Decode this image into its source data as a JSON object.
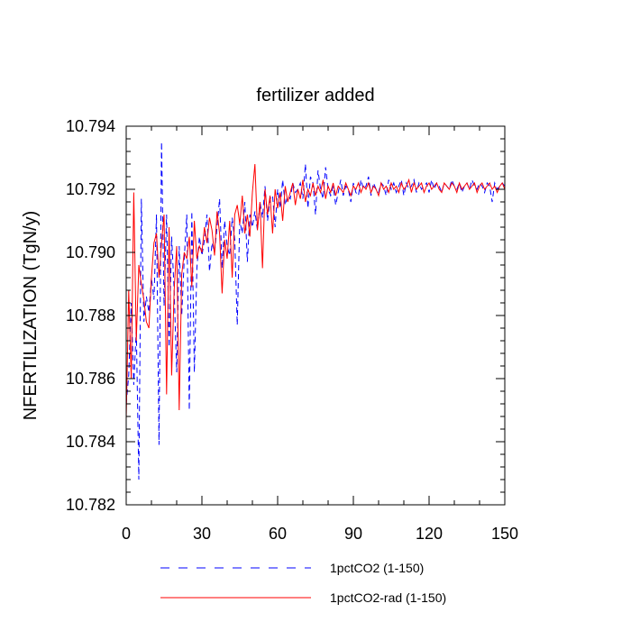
{
  "chart_data": {
    "type": "line",
    "title": "fertilizer added",
    "xlabel": "",
    "ylabel": "NFERTILIZATION  (TgN/y)",
    "xlim": [
      0,
      150
    ],
    "ylim": [
      10.782,
      10.794
    ],
    "x_ticks": [
      0,
      30,
      60,
      90,
      120,
      150
    ],
    "x_tick_labels": [
      "0",
      "30",
      "60",
      "90",
      "120",
      "150"
    ],
    "y_ticks": [
      10.782,
      10.784,
      10.786,
      10.788,
      10.79,
      10.792,
      10.794
    ],
    "y_tick_labels": [
      "10.782",
      "10.784",
      "10.786",
      "10.788",
      "10.790",
      "10.792",
      "10.794"
    ],
    "grid": false,
    "legend_position": "bottom",
    "series": [
      {
        "name": "1pctCO2 (1-150)",
        "color": "#0000ff",
        "dash": "dashed",
        "x": [
          0,
          1,
          2,
          3,
          4,
          5,
          6,
          7,
          8,
          9,
          10,
          11,
          12,
          13,
          14,
          15,
          16,
          17,
          18,
          19,
          20,
          21,
          22,
          23,
          24,
          25,
          26,
          27,
          28,
          29,
          30,
          31,
          32,
          33,
          34,
          35,
          36,
          37,
          38,
          39,
          40,
          41,
          42,
          43,
          44,
          45,
          46,
          47,
          48,
          49,
          50,
          51,
          52,
          53,
          54,
          55,
          56,
          57,
          58,
          59,
          60,
          61,
          62,
          63,
          64,
          65,
          66,
          67,
          68,
          69,
          70,
          71,
          72,
          73,
          74,
          75,
          76,
          77,
          78,
          79,
          80,
          81,
          82,
          83,
          84,
          85,
          86,
          87,
          88,
          89,
          90,
          91,
          92,
          93,
          94,
          95,
          96,
          97,
          98,
          99,
          100,
          101,
          102,
          103,
          104,
          105,
          106,
          107,
          108,
          109,
          110,
          111,
          112,
          113,
          114,
          115,
          116,
          117,
          118,
          119,
          120,
          121,
          122,
          123,
          124,
          125,
          126,
          127,
          128,
          129,
          130,
          131,
          132,
          133,
          134,
          135,
          136,
          137,
          138,
          139,
          140,
          141,
          142,
          143,
          144,
          145,
          146,
          147,
          148,
          149,
          150
        ],
        "y": [
          10.7852,
          10.7861,
          10.7884,
          10.7858,
          10.7876,
          10.7828,
          10.7917,
          10.7878,
          10.7886,
          10.7881,
          10.7892,
          10.7885,
          10.7912,
          10.7839,
          10.7935,
          10.7883,
          10.7912,
          10.787,
          10.7905,
          10.7888,
          10.7862,
          10.7902,
          10.788,
          10.7898,
          10.7912,
          10.785,
          10.7913,
          10.7862,
          10.7895,
          10.7905,
          10.7899,
          10.7904,
          10.7912,
          10.7894,
          10.7903,
          10.79,
          10.7908,
          10.7917,
          10.7895,
          10.791,
          10.7902,
          10.7899,
          10.7911,
          10.7904,
          10.7877,
          10.791,
          10.7906,
          10.7916,
          10.7897,
          10.7912,
          10.7908,
          10.7913,
          10.7907,
          10.7916,
          10.7911,
          10.7921,
          10.791,
          10.7917,
          10.7918,
          10.7908,
          10.792,
          10.7914,
          10.7923,
          10.7915,
          10.7918,
          10.7917,
          10.7922,
          10.7919,
          10.792,
          10.7922,
          10.7917,
          10.7928,
          10.7914,
          10.7924,
          10.7922,
          10.7912,
          10.7926,
          10.792,
          10.7917,
          10.7927,
          10.792,
          10.7918,
          10.7921,
          10.7915,
          10.7919,
          10.7923,
          10.7918,
          10.7921,
          10.792,
          10.7916,
          10.7922,
          10.7919,
          10.7918,
          10.7923,
          10.792,
          10.7921,
          10.7924,
          10.7918,
          10.7922,
          10.792,
          10.7919,
          10.7922,
          10.7921,
          10.7918,
          10.7923,
          10.792,
          10.7922,
          10.7919,
          10.7921,
          10.7923,
          10.7918,
          10.7922,
          10.792,
          10.7921,
          10.7923,
          10.7919,
          10.7922,
          10.792,
          10.7921,
          10.7922,
          10.7919,
          10.7923,
          10.792,
          10.7922,
          10.7921,
          10.7919,
          10.7922,
          10.7921,
          10.792,
          10.7923,
          10.7921,
          10.792,
          10.7922,
          10.7919,
          10.7921,
          10.7922,
          10.792,
          10.7923,
          10.7921,
          10.792,
          10.7922,
          10.7921,
          10.7919,
          10.7922,
          10.7921,
          10.7916,
          10.7922,
          10.792,
          10.7921,
          10.7922,
          10.7921
        ]
      },
      {
        "name": "1pctCO2-rad (1-150)",
        "color": "#ff0000",
        "dash": "solid",
        "x": [
          0,
          1,
          2,
          3,
          4,
          5,
          6,
          7,
          8,
          9,
          10,
          11,
          12,
          13,
          14,
          15,
          16,
          17,
          18,
          19,
          20,
          21,
          22,
          23,
          24,
          25,
          26,
          27,
          28,
          29,
          30,
          31,
          32,
          33,
          34,
          35,
          36,
          37,
          38,
          39,
          40,
          41,
          42,
          43,
          44,
          45,
          46,
          47,
          48,
          49,
          50,
          51,
          52,
          53,
          54,
          55,
          56,
          57,
          58,
          59,
          60,
          61,
          62,
          63,
          64,
          65,
          66,
          67,
          68,
          69,
          70,
          71,
          72,
          73,
          74,
          75,
          76,
          77,
          78,
          79,
          80,
          81,
          82,
          83,
          84,
          85,
          86,
          87,
          88,
          89,
          90,
          91,
          92,
          93,
          94,
          95,
          96,
          97,
          98,
          99,
          100,
          101,
          102,
          103,
          104,
          105,
          106,
          107,
          108,
          109,
          110,
          111,
          112,
          113,
          114,
          115,
          116,
          117,
          118,
          119,
          120,
          121,
          122,
          123,
          124,
          125,
          126,
          127,
          128,
          129,
          130,
          131,
          132,
          133,
          134,
          135,
          136,
          137,
          138,
          139,
          140,
          141,
          142,
          143,
          144,
          145,
          146,
          147,
          148,
          149,
          150
        ],
        "y": [
          10.7847,
          10.7888,
          10.786,
          10.7919,
          10.7872,
          10.7896,
          10.789,
          10.7885,
          10.7878,
          10.7876,
          10.7892,
          10.7903,
          10.7906,
          10.7892,
          10.7903,
          10.7912,
          10.7855,
          10.7908,
          10.7861,
          10.7888,
          10.7902,
          10.785,
          10.7893,
          10.79,
          10.7898,
          10.7905,
          10.7889,
          10.791,
          10.7898,
          10.7902,
          10.79,
          10.7908,
          10.7903,
          10.7911,
          10.7907,
          10.7899,
          10.7913,
          10.7906,
          10.7887,
          10.7904,
          10.7898,
          10.791,
          10.7892,
          10.7912,
          10.7915,
          10.7909,
          10.7918,
          10.7906,
          10.7912,
          10.7905,
          10.7919,
          10.7928,
          10.7907,
          10.7916,
          10.7895,
          10.792,
          10.7912,
          10.7918,
          10.7906,
          10.792,
          10.7914,
          10.7919,
          10.791,
          10.7921,
          10.7916,
          10.7919,
          10.7922,
          10.7915,
          10.792,
          10.7917,
          10.7923,
          10.7916,
          10.792,
          10.7918,
          10.7922,
          10.7918,
          10.7921,
          10.7919,
          10.7923,
          10.7917,
          10.7921,
          10.7919,
          10.7922,
          10.7918,
          10.7921,
          10.792,
          10.7919,
          10.7922,
          10.792,
          10.7918,
          10.7921,
          10.792,
          10.7922,
          10.7919,
          10.7921,
          10.792,
          10.7922,
          10.7919,
          10.7921,
          10.792,
          10.7918,
          10.7922,
          10.792,
          10.7921,
          10.7919,
          10.7922,
          10.792,
          10.7921,
          10.7919,
          10.7922,
          10.792,
          10.7921,
          10.7923,
          10.7919,
          10.7922,
          10.792,
          10.7921,
          10.7922,
          10.7919,
          10.7921,
          10.7922,
          10.792,
          10.7921,
          10.7922,
          10.792,
          10.7919,
          10.7922,
          10.7921,
          10.792,
          10.7922,
          10.7921,
          10.7919,
          10.7922,
          10.792,
          10.7921,
          10.7922,
          10.792,
          10.7921,
          10.7922,
          10.7919,
          10.7921,
          10.7922,
          10.792,
          10.7921,
          10.7922,
          10.792,
          10.7921,
          10.7919,
          10.7921,
          10.7922,
          10.792
        ]
      }
    ]
  }
}
